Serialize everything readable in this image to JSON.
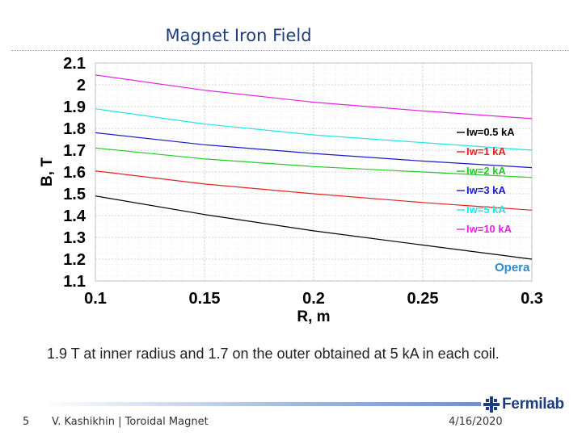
{
  "slide": {
    "title": "Magnet Iron Field",
    "caption": "1.9 T at inner radius and 1.7 on the outer obtained at 5 kA in each coil.",
    "page_number": "5",
    "footer_text": "V. Kashikhin | Toroidal Magnet",
    "date": "4/16/2020",
    "logo_text": "Fermilab"
  },
  "chart_data": {
    "type": "line",
    "title": "",
    "xlabel": "R, m",
    "ylabel": "B, T",
    "xlim": [
      0.1,
      0.3
    ],
    "ylim": [
      1.1,
      2.1
    ],
    "xticks": [
      "0.1",
      "0.15",
      "0.2",
      "0.25",
      "0.3"
    ],
    "yticks": [
      "1.1",
      "1.2",
      "1.3",
      "1.4",
      "1.5",
      "1.6",
      "1.7",
      "1.8",
      "1.9",
      "2",
      "2.1"
    ],
    "grid": true,
    "legend_position": "right",
    "watermark": "Opera",
    "series": [
      {
        "name": "Iw=0.5 kA",
        "color": "#000000",
        "x": [
          0.1,
          0.15,
          0.2,
          0.25,
          0.3
        ],
        "y": [
          1.49,
          1.405,
          1.33,
          1.265,
          1.2
        ]
      },
      {
        "name": "Iw=1 kA",
        "color": "#e52222",
        "x": [
          0.1,
          0.15,
          0.2,
          0.25,
          0.3
        ],
        "y": [
          1.605,
          1.545,
          1.5,
          1.46,
          1.425
        ]
      },
      {
        "name": "Iw=2 kA",
        "color": "#22cc22",
        "x": [
          0.1,
          0.15,
          0.2,
          0.25,
          0.3
        ],
        "y": [
          1.71,
          1.66,
          1.625,
          1.6,
          1.575
        ]
      },
      {
        "name": "Iw=3 kA",
        "color": "#1a1acc",
        "x": [
          0.1,
          0.15,
          0.2,
          0.25,
          0.3
        ],
        "y": [
          1.78,
          1.725,
          1.685,
          1.65,
          1.62
        ]
      },
      {
        "name": "Iw=5 kA",
        "color": "#22e5e5",
        "x": [
          0.1,
          0.15,
          0.2,
          0.25,
          0.3
        ],
        "y": [
          1.89,
          1.82,
          1.77,
          1.735,
          1.7
        ]
      },
      {
        "name": "Iw=10 kA",
        "color": "#e522e5",
        "x": [
          0.1,
          0.15,
          0.2,
          0.25,
          0.3
        ],
        "y": [
          2.045,
          1.975,
          1.92,
          1.88,
          1.845
        ]
      }
    ]
  }
}
